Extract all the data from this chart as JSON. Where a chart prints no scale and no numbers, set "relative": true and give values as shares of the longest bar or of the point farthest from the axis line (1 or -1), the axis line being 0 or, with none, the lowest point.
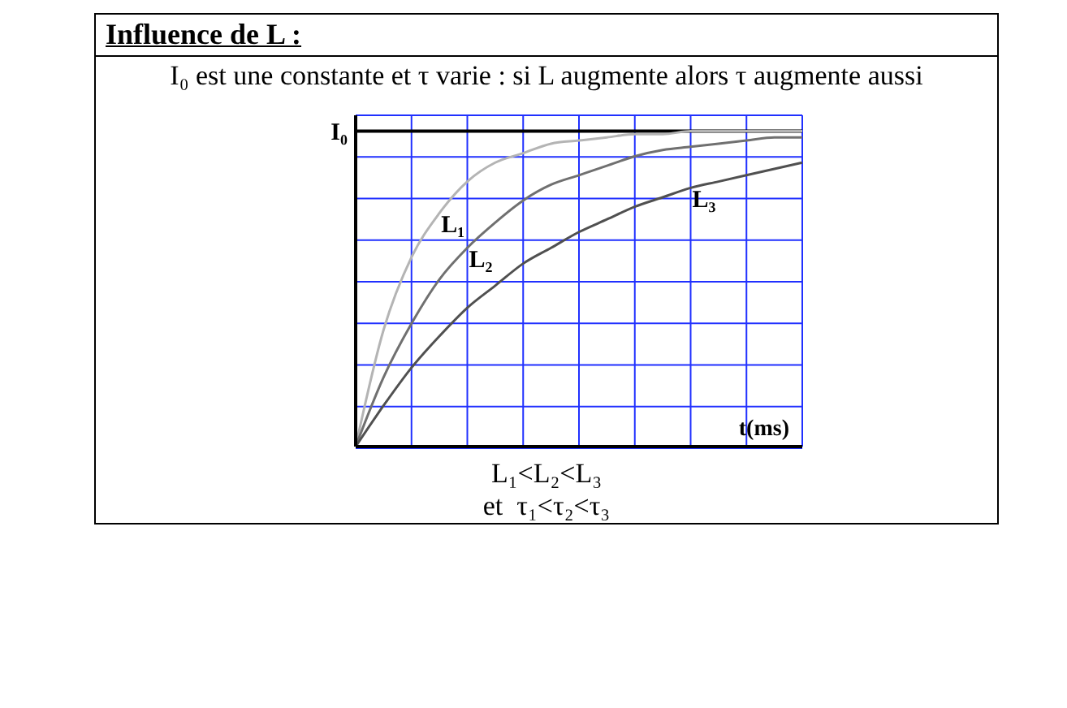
{
  "chart_data": {
    "type": "line",
    "title": "Influence de L :",
    "subtitle": "I₀ est une constante et τ varie : si L augmente alors τ augmente aussi",
    "xlabel": "t(ms)",
    "relative": true,
    "grid": true,
    "marker": "none",
    "line_style": "solid",
    "categories": [
      null,
      null,
      null,
      null,
      null,
      null,
      null,
      null,
      null,
      null,
      null,
      null,
      null,
      null,
      null,
      null,
      null
    ],
    "series": [
      {
        "name": "L₁",
        "color": "#b4b4b4",
        "values": [
          0,
          0.37,
          0.6,
          0.74,
          0.84,
          0.9,
          0.93,
          0.96,
          0.97,
          0.98,
          0.99,
          0.99,
          1,
          1,
          1,
          1,
          1
        ]
      },
      {
        "name": "L₂",
        "color": "#707070",
        "values": [
          0,
          0.22,
          0.39,
          0.53,
          0.63,
          0.71,
          0.78,
          0.83,
          0.86,
          0.89,
          0.92,
          0.94,
          0.95,
          0.96,
          0.97,
          0.98,
          0.98
        ]
      },
      {
        "name": "L₃",
        "color": "#505050",
        "values": [
          0,
          0.13,
          0.25,
          0.35,
          0.44,
          0.51,
          0.58,
          0.63,
          0.68,
          0.72,
          0.76,
          0.79,
          0.82,
          0.84,
          0.86,
          0.88,
          0.9
        ]
      }
    ],
    "ref_lines": [
      {
        "axis": "y",
        "value": 1,
        "label": "I₀",
        "color": "#000000"
      }
    ],
    "annotations": [
      "L₁<L₂<L₃",
      "et  τ₁<τ₂<τ₃"
    ]
  }
}
